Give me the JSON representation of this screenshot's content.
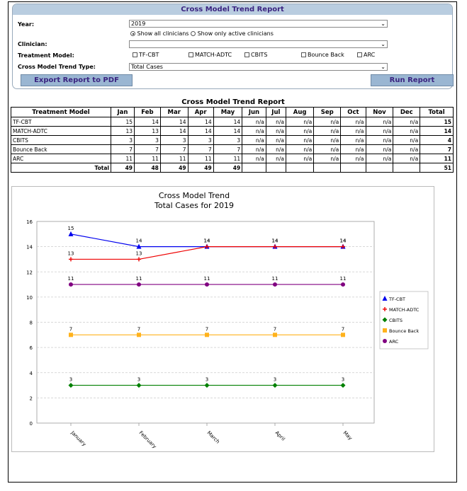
{
  "panel": {
    "title": "Cross Model Trend Report",
    "year_label": "Year:",
    "year_value": "2019",
    "radio_all": "Show all clinicians",
    "radio_active": "Show only active clinicians",
    "clinician_label": "Clinician:",
    "clinician_value": "",
    "treatment_label": "Treatment Model:",
    "models": [
      "TF-CBT",
      "MATCH-ADTC",
      "CBITS",
      "Bounce Back",
      "ARC"
    ],
    "trend_label": "Cross Model Trend Type:",
    "trend_value": "Total Cases",
    "export_button": "Export Report to PDF",
    "run_button": "Run Report"
  },
  "report": {
    "title": "Cross Model Trend Report",
    "headers": [
      "Treatment Model",
      "Jan",
      "Feb",
      "Mar",
      "Apr",
      "May",
      "Jun",
      "Jul",
      "Aug",
      "Sep",
      "Oct",
      "Nov",
      "Dec",
      "Total"
    ],
    "rows": [
      {
        "name": "TF-CBT",
        "values": [
          "15",
          "14",
          "14",
          "14",
          "14",
          "n/a",
          "n/a",
          "n/a",
          "n/a",
          "n/a",
          "n/a",
          "n/a"
        ],
        "total": "15"
      },
      {
        "name": "MATCH-ADTC",
        "values": [
          "13",
          "13",
          "14",
          "14",
          "14",
          "n/a",
          "n/a",
          "n/a",
          "n/a",
          "n/a",
          "n/a",
          "n/a"
        ],
        "total": "14"
      },
      {
        "name": "CBITS",
        "values": [
          "3",
          "3",
          "3",
          "3",
          "3",
          "n/a",
          "n/a",
          "n/a",
          "n/a",
          "n/a",
          "n/a",
          "n/a"
        ],
        "total": "4"
      },
      {
        "name": "Bounce Back",
        "values": [
          "7",
          "7",
          "7",
          "7",
          "7",
          "n/a",
          "n/a",
          "n/a",
          "n/a",
          "n/a",
          "n/a",
          "n/a"
        ],
        "total": "7"
      },
      {
        "name": "ARC",
        "values": [
          "11",
          "11",
          "11",
          "11",
          "11",
          "n/a",
          "n/a",
          "n/a",
          "n/a",
          "n/a",
          "n/a",
          "n/a"
        ],
        "total": "11"
      }
    ],
    "total_row": {
      "label": "Total",
      "values": [
        "49",
        "48",
        "49",
        "49",
        "49",
        "",
        "",
        "",
        "",
        "",
        "",
        ""
      ],
      "total": "51"
    }
  },
  "chart_data": {
    "type": "line",
    "title": "Cross Model Trend",
    "subtitle": "Total Cases for 2019",
    "categories": [
      "January",
      "February",
      "March",
      "April",
      "May"
    ],
    "ylim": [
      0,
      16
    ],
    "yticks": [
      0,
      2,
      4,
      6,
      8,
      10,
      12,
      14,
      16
    ],
    "grid": true,
    "legend_position": "right",
    "series": [
      {
        "name": "TF-CBT",
        "values": [
          15,
          14,
          14,
          14,
          14
        ],
        "color": "#0000ee",
        "marker": "triangle"
      },
      {
        "name": "MATCH-ADTC",
        "values": [
          13,
          13,
          14,
          14,
          14
        ],
        "color": "#ee0000",
        "marker": "cross"
      },
      {
        "name": "CBITS",
        "values": [
          3,
          3,
          3,
          3,
          3
        ],
        "color": "#008000",
        "marker": "diamond"
      },
      {
        "name": "Bounce Back",
        "values": [
          7,
          7,
          7,
          7,
          7
        ],
        "color": "#ffb21c",
        "marker": "square"
      },
      {
        "name": "ARC",
        "values": [
          11,
          11,
          11,
          11,
          11
        ],
        "color": "#800080",
        "marker": "circle"
      }
    ]
  }
}
